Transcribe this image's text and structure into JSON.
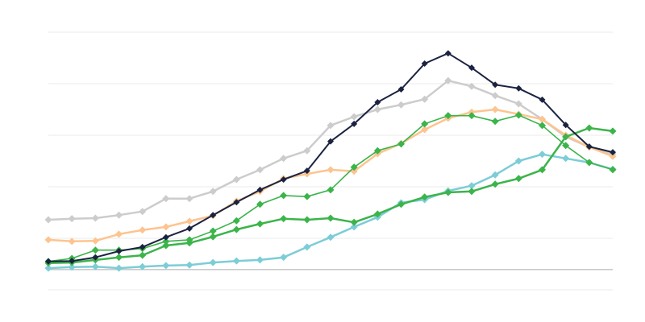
{
  "chart_data": {
    "type": "line",
    "title": "",
    "xlabel": "",
    "ylabel": "",
    "x": [
      1,
      2,
      3,
      4,
      5,
      6,
      7,
      8,
      9,
      10,
      11,
      12,
      13,
      14,
      15,
      16,
      17,
      18,
      19,
      20,
      21,
      22,
      23,
      24,
      25
    ],
    "ylim": [
      0,
      50
    ],
    "grid": true,
    "gridlines": [
      0,
      10,
      20,
      30,
      40,
      50
    ],
    "baseline_value": 4,
    "legend": "none",
    "marker": "diamond",
    "series": [
      {
        "color": "#cccccc",
        "values": [
          13.6,
          13.8,
          13.9,
          14.5,
          15.2,
          17.7,
          17.7,
          19.1,
          21.4,
          23.3,
          25.5,
          27.0,
          31.9,
          33.6,
          35.0,
          35.9,
          37.0,
          40.6,
          39.5,
          37.7,
          36.1,
          33.1,
          29.7,
          27.7,
          26.4
        ]
      },
      {
        "color": "#fdc48f",
        "values": [
          9.7,
          9.4,
          9.5,
          10.8,
          11.6,
          12.2,
          13.3,
          14.4,
          17.2,
          19.1,
          21.6,
          22.5,
          23.3,
          23.0,
          26.4,
          28.4,
          31.1,
          33.3,
          34.5,
          35.0,
          34.1,
          33.1,
          30.0,
          27.7,
          25.9
        ]
      },
      {
        "color": "#7ccdd6",
        "values": [
          4.2,
          4.4,
          4.5,
          4.2,
          4.5,
          4.7,
          4.8,
          5.3,
          5.6,
          5.8,
          6.3,
          8.3,
          10.2,
          12.2,
          14.1,
          16.9,
          17.5,
          19.2,
          20.2,
          22.3,
          25.0,
          26.3,
          25.5,
          24.7,
          23.4
        ]
      },
      {
        "color": "#3bb44a",
        "values": [
          5.2,
          5.3,
          5.8,
          6.3,
          6.7,
          8.6,
          9.1,
          10.3,
          11.7,
          12.8,
          13.8,
          13.6,
          13.9,
          13.1,
          14.7,
          16.6,
          18.0,
          18.9,
          19.1,
          20.5,
          21.6,
          23.3,
          29.7,
          31.4,
          30.8
        ]
      },
      {
        "color": "#3bb44a",
        "values": [
          5.5,
          6.1,
          7.7,
          7.7,
          8.0,
          9.4,
          9.7,
          11.4,
          13.4,
          16.6,
          18.3,
          18.1,
          19.4,
          23.8,
          27.0,
          28.3,
          32.2,
          33.8,
          33.8,
          32.7,
          33.9,
          31.9,
          28.0,
          24.7,
          23.3
        ]
      },
      {
        "color": "#1b2340",
        "values": [
          5.5,
          5.6,
          6.3,
          7.5,
          8.3,
          10.2,
          11.9,
          14.5,
          17.0,
          19.4,
          21.4,
          23.1,
          28.8,
          32.2,
          36.4,
          38.9,
          43.9,
          45.9,
          43.1,
          39.8,
          39.1,
          36.9,
          32.0,
          27.8,
          26.7
        ]
      }
    ]
  }
}
